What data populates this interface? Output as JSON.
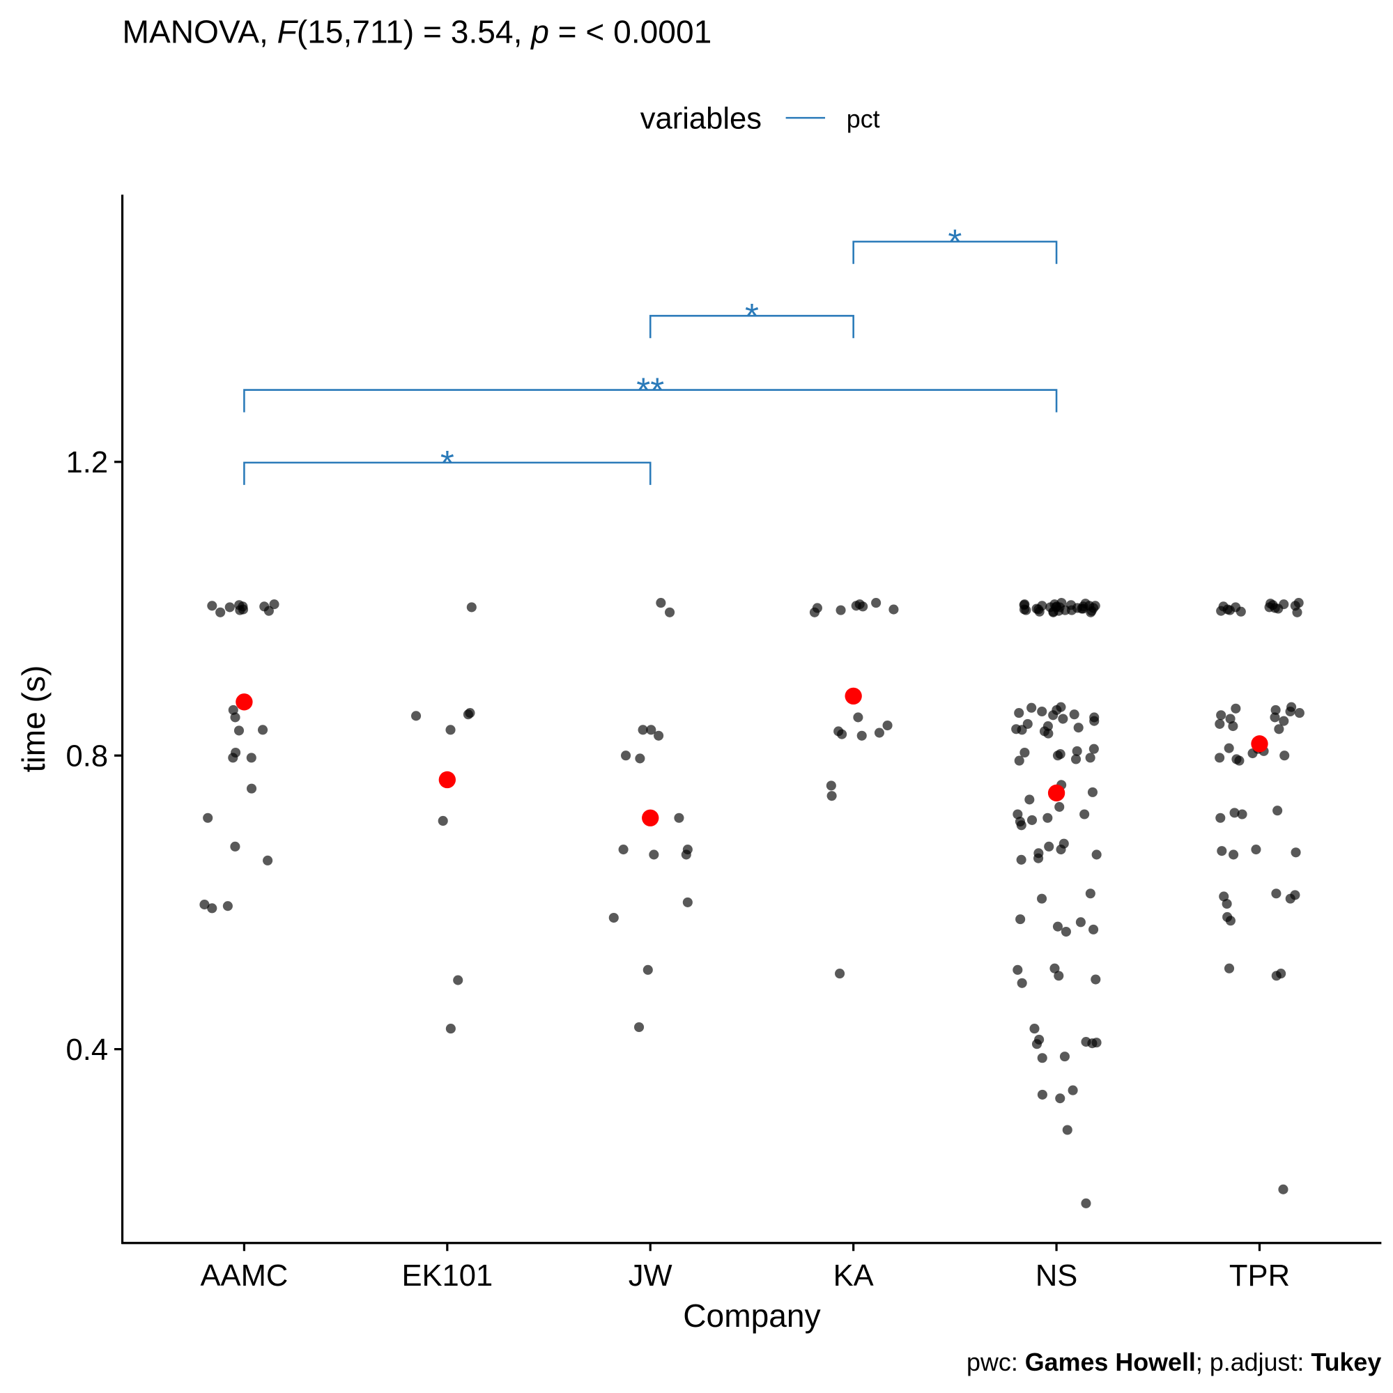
{
  "chart_data": {
    "type": "scatter",
    "title_parts": [
      "MANOVA, ",
      "F",
      "(15,711) = 3.54, ",
      "p",
      " = < 0.0001"
    ],
    "caption_parts": [
      "pwc: ",
      "Games Howell",
      "; p.adjust: ",
      "Tukey"
    ],
    "x_label": "Company",
    "y_label": "time (s)",
    "legend": {
      "title": "variables",
      "entries": [
        {
          "name": "pct",
          "color": "#2a7ab9"
        }
      ]
    },
    "categories": [
      "AAMC",
      "EK101",
      "JW",
      "KA",
      "NS",
      "TPR"
    ],
    "point_color": "#000000",
    "mean_color": "#ff0000",
    "points": [
      [
        1.004,
        1.003,
        1.002,
        0.998,
        0.995,
        1.006,
        0.997,
        1.003,
        1.005,
        0.999,
        0.862,
        0.852,
        0.835,
        0.834,
        0.804,
        0.797,
        0.797,
        0.755,
        0.715,
        0.676,
        0.657,
        0.595,
        0.592,
        0.597
      ],
      [
        1.002,
        0.858,
        0.856,
        0.854,
        0.835,
        0.711,
        0.494,
        0.428
      ],
      [
        1.008,
        0.995,
        0.835,
        0.835,
        0.827,
        0.8,
        0.796,
        0.715,
        0.672,
        0.672,
        0.665,
        0.665,
        0.579,
        0.6,
        0.508,
        0.43
      ],
      [
        1.008,
        1.004,
        1.001,
        0.998,
        0.995,
        1.006,
        0.999,
        1.003,
        0.852,
        0.841,
        0.833,
        0.827,
        0.829,
        0.831,
        0.759,
        0.745,
        0.503
      ],
      [
        1.008,
        1.007,
        1.006,
        1.005,
        1.005,
        1.004,
        1.004,
        1.003,
        1.003,
        1.002,
        1.002,
        1.001,
        1.001,
        1.0,
        1.0,
        0.999,
        0.999,
        0.998,
        0.998,
        0.997,
        0.997,
        0.996,
        0.996,
        0.995,
        0.995,
        1.006,
        1.004,
        1.002,
        1.0,
        0.998,
        0.866,
        0.865,
        0.862,
        0.86,
        0.858,
        0.856,
        0.855,
        0.852,
        0.85,
        0.847,
        0.843,
        0.84,
        0.838,
        0.836,
        0.835,
        0.833,
        0.83,
        0.809,
        0.806,
        0.804,
        0.802,
        0.8,
        0.797,
        0.795,
        0.793,
        0.76,
        0.75,
        0.74,
        0.73,
        0.715,
        0.71,
        0.712,
        0.705,
        0.72,
        0.72,
        0.68,
        0.676,
        0.672,
        0.667,
        0.665,
        0.66,
        0.658,
        0.612,
        0.605,
        0.577,
        0.573,
        0.567,
        0.563,
        0.56,
        0.51,
        0.508,
        0.5,
        0.495,
        0.49,
        0.428,
        0.413,
        0.41,
        0.409,
        0.408,
        0.407,
        0.39,
        0.388,
        0.344,
        0.338,
        0.333,
        0.29,
        0.19
      ],
      [
        1.008,
        1.007,
        1.005,
        1.004,
        1.003,
        1.002,
        1.001,
        1.0,
        0.999,
        0.998,
        0.997,
        0.996,
        0.995,
        1.006,
        1.002,
        0.866,
        0.864,
        0.862,
        0.86,
        0.858,
        0.855,
        0.852,
        0.85,
        0.847,
        0.843,
        0.84,
        0.836,
        0.809,
        0.806,
        0.803,
        0.8,
        0.797,
        0.795,
        0.793,
        0.81,
        0.725,
        0.722,
        0.72,
        0.715,
        0.67,
        0.668,
        0.665,
        0.672,
        0.612,
        0.61,
        0.608,
        0.605,
        0.598,
        0.58,
        0.575,
        0.51,
        0.5,
        0.503,
        0.209
      ]
    ],
    "means": [
      0.873,
      0.767,
      0.715,
      0.881,
      0.749,
      0.816
    ],
    "comparisons": [
      {
        "groups": [
          "AAMC",
          "JW"
        ],
        "y": 1.199,
        "label": "*"
      },
      {
        "groups": [
          "AAMC",
          "NS"
        ],
        "y": 1.298,
        "label": "**"
      },
      {
        "groups": [
          "JW",
          "KA"
        ],
        "y": 1.399,
        "label": "*"
      },
      {
        "groups": [
          "KA",
          "NS"
        ],
        "y": 1.5,
        "label": "*"
      }
    ],
    "ylim": [
      0.136,
      1.564
    ],
    "yticks": [
      0.4,
      0.8,
      1.2
    ]
  }
}
